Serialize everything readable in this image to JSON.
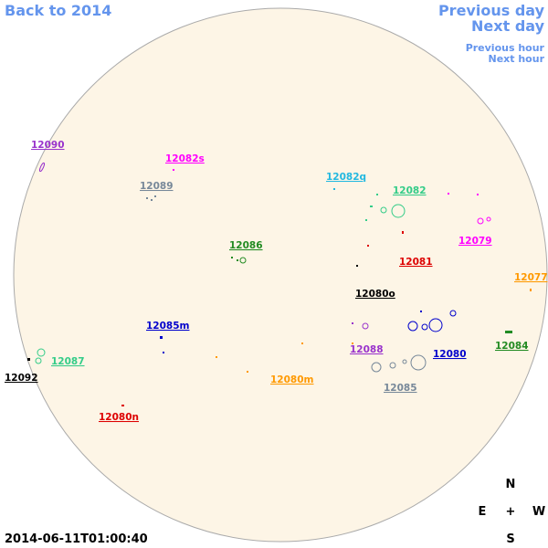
{
  "nav": {
    "back": "Back to 2014",
    "previous_day": "Previous day",
    "next_day": "Next day",
    "previous_hour": "Previous hour",
    "next_hour": "Next hour"
  },
  "regions": [
    {
      "label": "12090",
      "color": "#9933cc"
    },
    {
      "label": "12082s",
      "color": "#ff00ff"
    },
    {
      "label": "12089",
      "color": "#778899"
    },
    {
      "label": "12082q",
      "color": "#22b8e0"
    },
    {
      "label": "12082",
      "color": "#33cc88"
    },
    {
      "label": "12079",
      "color": "#ff00ff"
    },
    {
      "label": "12086",
      "color": "#228b22"
    },
    {
      "label": "12081",
      "color": "#dd0000"
    },
    {
      "label": "12077",
      "color": "#ff9900"
    },
    {
      "label": "12080o",
      "color": "#000000"
    },
    {
      "label": "12085m",
      "color": "#0000cc"
    },
    {
      "label": "12084",
      "color": "#228b22"
    },
    {
      "label": "12088",
      "color": "#9933cc"
    },
    {
      "label": "12080",
      "color": "#0000cc"
    },
    {
      "label": "12087",
      "color": "#33cc88"
    },
    {
      "label": "12092",
      "color": "#000000"
    },
    {
      "label": "12080m",
      "color": "#ff9900"
    },
    {
      "label": "12085",
      "color": "#778899"
    },
    {
      "label": "12080n",
      "color": "#dd0000"
    }
  ],
  "timestamp": "2014-06-11T01:00:40",
  "compass": {
    "north": "N",
    "east": "E",
    "center": "+",
    "west": "W",
    "south": "S"
  }
}
